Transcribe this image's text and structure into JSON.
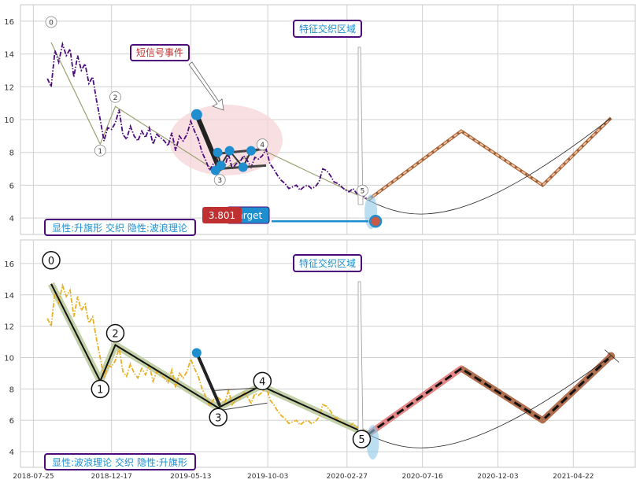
{
  "chart_data": [
    {
      "type": "line",
      "panel": "top",
      "ylim": [
        3.0,
        17.0
      ],
      "yticks": [
        4,
        6,
        8,
        10,
        12,
        14,
        16
      ],
      "grid": true,
      "price_color": "#4b0a7a",
      "price_style": "dash-dot",
      "price": {
        "x": [
          "2018-08-20",
          "2018-08-27",
          "2018-09-03",
          "2018-09-10",
          "2018-09-17",
          "2018-09-24",
          "2018-10-01",
          "2018-10-08",
          "2018-10-15",
          "2018-10-22",
          "2018-10-29",
          "2018-11-05",
          "2018-11-12",
          "2018-11-19",
          "2018-11-26",
          "2018-12-03",
          "2018-12-10",
          "2018-12-17",
          "2018-12-24",
          "2018-12-31",
          "2019-01-07",
          "2019-01-14",
          "2019-01-21",
          "2019-01-28",
          "2019-02-04",
          "2019-02-11",
          "2019-02-18",
          "2019-02-25",
          "2019-03-04",
          "2019-03-11",
          "2019-03-18",
          "2019-03-25",
          "2019-04-01",
          "2019-04-08",
          "2019-04-15",
          "2019-04-22",
          "2019-04-29",
          "2019-05-06",
          "2019-05-13",
          "2019-05-20",
          "2019-05-27",
          "2019-06-03",
          "2019-06-10",
          "2019-06-17",
          "2019-06-24",
          "2019-07-01",
          "2019-07-08",
          "2019-07-15",
          "2019-07-22",
          "2019-07-29",
          "2019-08-05",
          "2019-08-12",
          "2019-08-19",
          "2019-08-26",
          "2019-09-02",
          "2019-09-09",
          "2019-09-16",
          "2019-09-23",
          "2019-09-30",
          "2019-10-07",
          "2019-10-14",
          "2019-10-21",
          "2019-10-28",
          "2019-11-04",
          "2019-11-11",
          "2019-11-18",
          "2019-11-25",
          "2019-12-02",
          "2019-12-09",
          "2019-12-16",
          "2019-12-23",
          "2019-12-30",
          "2020-01-06",
          "2020-01-13",
          "2020-01-20",
          "2020-01-27",
          "2020-02-03",
          "2020-02-10",
          "2020-02-17",
          "2020-02-24",
          "2020-03-02",
          "2020-03-09",
          "2020-03-16",
          "2020-03-23",
          "2020-03-30",
          "2020-04-06"
        ],
        "y": [
          12.5,
          12.0,
          14.2,
          13.5,
          14.6,
          13.9,
          14.3,
          12.6,
          13.9,
          13.0,
          13.4,
          12.2,
          12.6,
          11.2,
          10.0,
          8.7,
          9.5,
          9.4,
          9.8,
          10.6,
          9.1,
          8.8,
          9.6,
          9.0,
          8.7,
          9.3,
          8.9,
          9.5,
          8.5,
          9.1,
          8.9,
          8.7,
          8.4,
          9.2,
          8.1,
          9.0,
          8.7,
          9.1,
          9.9,
          9.3,
          8.8,
          8.0,
          7.5,
          6.9,
          7.3,
          7.5,
          7.3,
          7.1,
          7.9,
          7.0,
          7.3,
          7.4,
          7.8,
          7.5,
          7.1,
          7.7,
          7.6,
          7.8,
          8.2,
          7.3,
          7.0,
          6.6,
          6.3,
          6.1,
          5.8,
          5.9,
          6.0,
          5.7,
          5.9,
          6.0,
          5.8,
          5.9,
          6.2,
          7.0,
          6.9,
          6.6,
          6.2,
          6.1,
          5.9,
          5.7,
          5.6,
          5.8,
          5.5,
          5.6,
          5.3,
          5.1
        ]
      },
      "wave_points": [
        {
          "label": "0",
          "date": "2018-08-27",
          "value": 14.7
        },
        {
          "label": "1",
          "date": "2018-11-26",
          "value": 8.5
        },
        {
          "label": "2",
          "date": "2018-12-24",
          "value": 10.8
        },
        {
          "label": "3",
          "date": "2019-07-03",
          "value": 6.8
        },
        {
          "label": "4",
          "date": "2019-09-20",
          "value": 8.2
        },
        {
          "label": "5",
          "date": "2020-04-06",
          "value": 5.1
        }
      ],
      "flag": {
        "pole": [
          {
            "date": "2019-05-24",
            "value": 10.3
          },
          {
            "date": "2019-07-05",
            "value": 7.0
          }
        ],
        "upper": [
          {
            "date": "2019-06-26",
            "value": 7.9
          },
          {
            "date": "2019-09-25",
            "value": 8.2
          }
        ],
        "lower": [
          {
            "date": "2019-07-01",
            "value": 7.0
          },
          {
            "date": "2019-09-30",
            "value": 7.2
          }
        ],
        "markers": [
          {
            "date": "2019-05-24",
            "value": 10.3
          },
          {
            "date": "2019-06-28",
            "value": 6.9
          },
          {
            "date": "2019-07-02",
            "value": 8.0
          },
          {
            "date": "2019-07-08",
            "value": 7.2
          },
          {
            "date": "2019-07-24",
            "value": 8.1
          },
          {
            "date": "2019-08-18",
            "value": 7.1
          },
          {
            "date": "2019-09-02",
            "value": 8.1
          }
        ]
      },
      "forecast": [
        {
          "date": "2020-04-06",
          "value": 5.1
        },
        {
          "date": "2020-09-26",
          "value": 9.3
        },
        {
          "date": "2021-02-24",
          "value": 6.0
        },
        {
          "date": "2021-07-01",
          "value": 10.1
        }
      ],
      "target_value": 3.801,
      "target_date": "2020-04-20",
      "target_badge": "3.801",
      "target_label": "target",
      "signal_label": "短信号事件",
      "zone_label": "特征交织区域",
      "bottom_note": "显性:升旗形 交织 隐性:波浪理论",
      "point_markers": [
        "0",
        "1",
        "2",
        "3",
        "4",
        "5"
      ]
    },
    {
      "type": "line",
      "panel": "bottom",
      "ylim": [
        3.0,
        17.5
      ],
      "yticks": [
        4,
        6,
        8,
        10,
        12,
        14,
        16
      ],
      "grid": true,
      "price_color": "#e8b020",
      "price_style": "dash-dot",
      "wave_points": [
        {
          "label": "0",
          "date": "2018-08-27",
          "value": 14.7
        },
        {
          "label": "1",
          "date": "2018-11-26",
          "value": 8.5
        },
        {
          "label": "2",
          "date": "2018-12-24",
          "value": 10.8
        },
        {
          "label": "3",
          "date": "2019-07-03",
          "value": 6.8
        },
        {
          "label": "4",
          "date": "2019-09-20",
          "value": 8.2
        },
        {
          "label": "5",
          "date": "2020-04-06",
          "value": 5.1
        }
      ],
      "forecast": [
        {
          "date": "2020-04-06",
          "value": 5.1
        },
        {
          "date": "2020-09-26",
          "value": 9.3
        },
        {
          "date": "2021-02-24",
          "value": 6.0
        },
        {
          "date": "2021-07-01",
          "value": 10.1
        }
      ],
      "zone_label": "特征交织区域",
      "bottom_note": "显性:波浪理论 交织 隐性:升旗形",
      "point_markers": [
        "0",
        "1",
        "2",
        "3",
        "4",
        "5"
      ]
    }
  ],
  "x_ticks": [
    "2018-07-25",
    "2018-12-17",
    "2019-05-13",
    "2019-10-03",
    "2020-02-27",
    "2020-07-16",
    "2020-12-03",
    "2021-04-22"
  ],
  "colors": {
    "grid": "#d0d0d0",
    "frame": "#c8c8c8",
    "marker_blue": "#1e8ecf",
    "wave_band": "#c3d0a8",
    "forecast_top": "#f0b080",
    "forecast_top_end": "#c07a5a",
    "forecast_band_bottom": "#e07a7a",
    "label_border": "#4b0a7a",
    "label_text_blue": "#1e8ecf",
    "label_text_red": "#c03030",
    "badge_red": "#c03030",
    "zone_ellipse": "#f6d5d8"
  }
}
